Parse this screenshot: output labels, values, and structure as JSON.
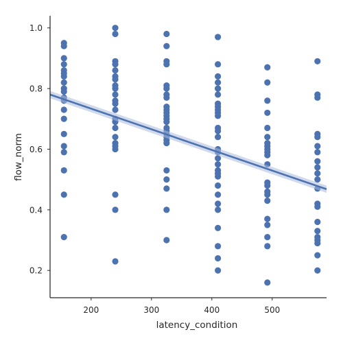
{
  "chart_data": {
    "type": "scatter",
    "xlabel": "latency_condition",
    "ylabel": "flow_norm",
    "xlim": [
      132,
      590
    ],
    "ylim": [
      0.11,
      1.04
    ],
    "xticks": [
      200,
      300,
      400,
      500
    ],
    "yticks": [
      0.2,
      0.4,
      0.6,
      0.8,
      1.0
    ],
    "ytick_labels": [
      "0.2",
      "0.4",
      "0.6",
      "0.8",
      "1.0"
    ],
    "grid": false,
    "colors": {
      "points": "#4c72b0",
      "line": "#4c72b0",
      "band": "#a9bcdc"
    },
    "regression": {
      "x": [
        132,
        590
      ],
      "y": [
        0.78,
        0.468
      ],
      "ci_band": [
        0.012,
        0.012
      ]
    },
    "groups": [
      {
        "x": 155,
        "y": [
          0.95,
          0.94,
          0.9,
          0.88,
          0.86,
          0.85,
          0.84,
          0.82,
          0.8,
          0.79,
          0.77,
          0.76,
          0.73,
          0.7,
          0.65,
          0.61,
          0.59,
          0.53,
          0.45,
          0.31
        ]
      },
      {
        "x": 240,
        "y": [
          1.0,
          0.98,
          0.89,
          0.88,
          0.86,
          0.84,
          0.83,
          0.81,
          0.8,
          0.78,
          0.76,
          0.75,
          0.73,
          0.7,
          0.69,
          0.67,
          0.64,
          0.62,
          0.61,
          0.6,
          0.45,
          0.4,
          0.23
        ]
      },
      {
        "x": 325,
        "y": [
          0.98,
          0.94,
          0.89,
          0.88,
          0.81,
          0.8,
          0.78,
          0.77,
          0.74,
          0.73,
          0.72,
          0.71,
          0.7,
          0.69,
          0.67,
          0.66,
          0.65,
          0.64,
          0.63,
          0.62,
          0.53,
          0.5,
          0.47,
          0.4,
          0.3
        ]
      },
      {
        "x": 410,
        "y": [
          0.97,
          0.88,
          0.84,
          0.82,
          0.8,
          0.78,
          0.75,
          0.74,
          0.73,
          0.72,
          0.71,
          0.67,
          0.66,
          0.64,
          0.6,
          0.59,
          0.57,
          0.55,
          0.53,
          0.52,
          0.51,
          0.48,
          0.45,
          0.42,
          0.4,
          0.34,
          0.28,
          0.24,
          0.2
        ]
      },
      {
        "x": 492,
        "y": [
          0.87,
          0.82,
          0.76,
          0.72,
          0.67,
          0.64,
          0.62,
          0.61,
          0.6,
          0.59,
          0.58,
          0.55,
          0.49,
          0.48,
          0.46,
          0.45,
          0.43,
          0.37,
          0.35,
          0.31,
          0.28,
          0.16
        ]
      },
      {
        "x": 575,
        "y": [
          0.89,
          0.78,
          0.77,
          0.65,
          0.64,
          0.61,
          0.59,
          0.56,
          0.54,
          0.52,
          0.5,
          0.47,
          0.42,
          0.41,
          0.36,
          0.33,
          0.31,
          0.3,
          0.29,
          0.25,
          0.2
        ]
      }
    ]
  }
}
